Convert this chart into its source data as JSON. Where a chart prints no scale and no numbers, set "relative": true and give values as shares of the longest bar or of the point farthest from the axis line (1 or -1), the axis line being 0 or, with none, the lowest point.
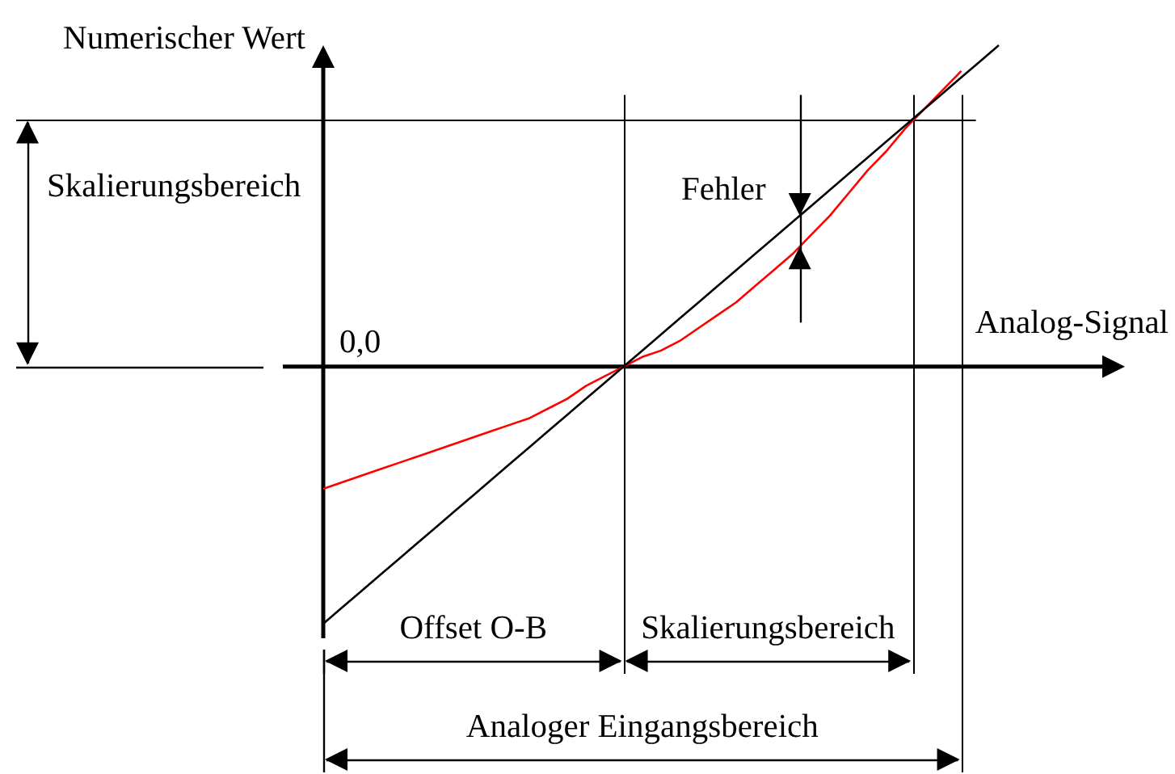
{
  "chart_data": {
    "type": "line",
    "relative": true,
    "xlabel": "Analog-Signal",
    "ylabel": "Numerischer Wert",
    "marker": "none",
    "grid": "x",
    "categories": [
      null,
      null,
      null,
      null,
      null,
      null,
      null,
      null,
      null,
      null,
      null,
      null,
      null,
      null,
      null,
      null,
      null,
      null,
      null,
      null,
      null,
      null,
      null,
      null,
      null,
      null,
      null,
      null,
      null,
      null,
      null,
      null,
      null,
      null,
      null,
      null,
      null
    ],
    "series": [
      {
        "color": "#000000",
        "values": [
          -0.8,
          -0.75,
          -0.7,
          -0.65,
          -0.6,
          -0.55,
          -0.5,
          -0.45,
          -0.4,
          -0.35,
          -0.3,
          -0.25,
          -0.2,
          -0.15,
          -0.1,
          -0.05,
          0,
          0.05,
          0.1,
          0.15,
          0.2,
          0.25,
          0.3,
          0.35,
          0.4,
          0.45,
          0.5,
          0.55,
          0.6,
          0.65,
          0.7,
          0.75,
          0.8,
          0.85,
          0.9,
          0.95,
          1
        ]
      },
      {
        "color": "#ff0000",
        "values": [
          -0.38,
          -0.36,
          -0.34,
          -0.32,
          -0.3,
          -0.28,
          -0.26,
          -0.24,
          -0.22,
          -0.2,
          -0.18,
          -0.16,
          -0.13,
          -0.1,
          -0.06,
          -0.03,
          0,
          0.03,
          0.05,
          0.08,
          0.12,
          0.16,
          0.2,
          0.25,
          0.3,
          0.35,
          0.41,
          0.47,
          0.54,
          0.61,
          0.67,
          0.74,
          0.8,
          0.86,
          0.92,
          null,
          null
        ]
      }
    ],
    "ref_lines": [
      {
        "axis": "y",
        "value": 0.77
      }
    ],
    "annotations": [
      "0,0",
      "Skalierungsbereich",
      "Fehler",
      "Offset O-B",
      "Skalierungsbereich",
      "Analoger Eingangsbereich"
    ]
  }
}
